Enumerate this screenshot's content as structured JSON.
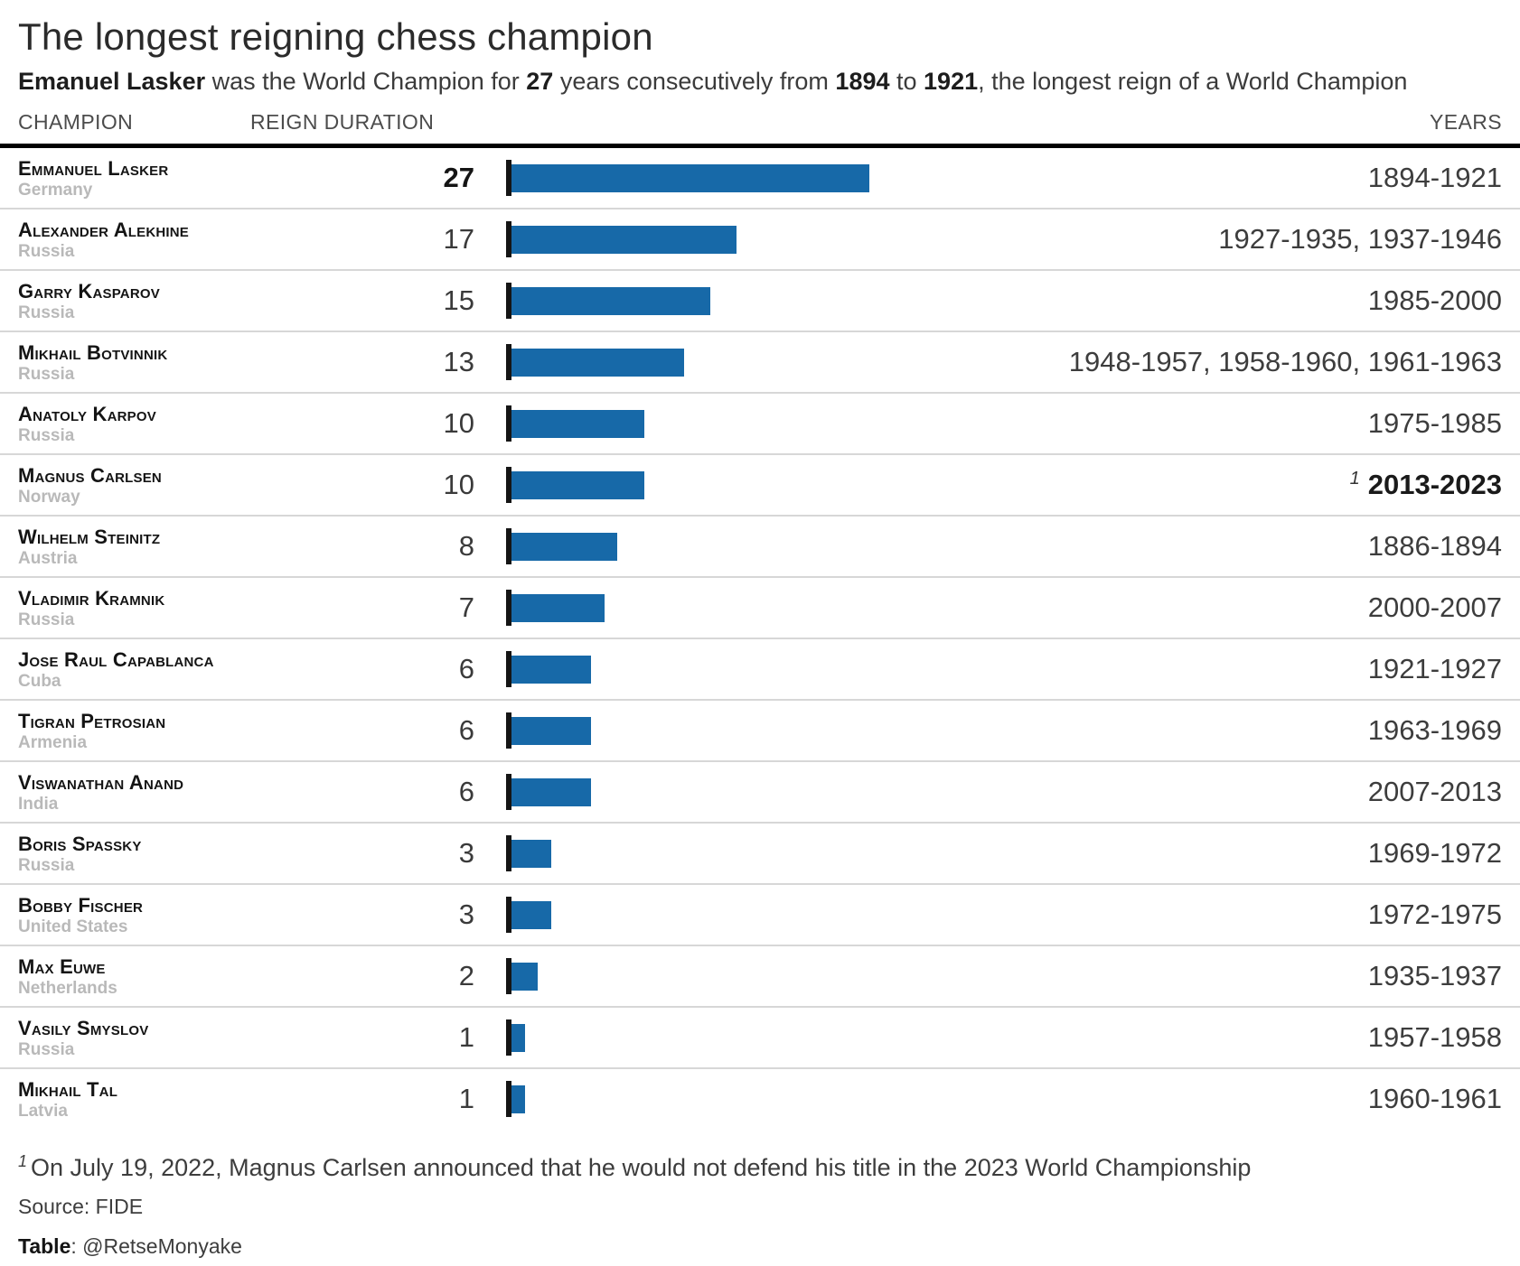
{
  "page": {
    "title": "The longest reigning chess champion",
    "subtitle_parts": [
      {
        "text": "Emanuel Lasker",
        "bold": true
      },
      {
        "text": " was the World Champion for ",
        "bold": false
      },
      {
        "text": "27",
        "bold": true
      },
      {
        "text": " years consecutively from ",
        "bold": false
      },
      {
        "text": "1894",
        "bold": true
      },
      {
        "text": " to ",
        "bold": false
      },
      {
        "text": "1921",
        "bold": true
      },
      {
        "text": ", the longest reign of a World Champion",
        "bold": false
      }
    ],
    "columns": {
      "champion": "CHAMPION",
      "reign": "REIGN DURATION",
      "years": "YEARS"
    },
    "footnote": {
      "marker": "1",
      "text": "On July 19, 2022, Magnus Carlsen announced that he would not defend his title in the 2023 World Championship"
    },
    "source": "Source: FIDE",
    "credit_label": "Table",
    "credit_rest": ": @RetseMonyake"
  },
  "colors": {
    "bar": "#1769a8",
    "axis_tick": "#151515",
    "divider": "#d7d7d7",
    "header_rule": "#000000",
    "country_text": "#b9b9b9"
  },
  "chart_data": {
    "type": "bar",
    "title": "The longest reigning chess champion",
    "subtitle": "Emanuel Lasker was the World Champion for 27 years consecutively from 1894 to 1921, the longest reign of a World Champion",
    "xlabel": "REIGN DURATION",
    "ylabel": "CHAMPION",
    "unit": "years",
    "xlim": [
      0,
      27
    ],
    "grid": false,
    "legend_position": "none",
    "bar_color": "#1769a8",
    "categories": [
      "Emmanuel Lasker",
      "Alexander Alekhine",
      "Garry Kasparov",
      "Mikhail Botvinnik",
      "Anatoly Karpov",
      "Magnus Carlsen",
      "Wilhelm Steinitz",
      "Vladimir Kramnik",
      "Jose Raul Capablanca",
      "Tigran Petrosian",
      "Viswanathan Anand",
      "Boris Spassky",
      "Bobby Fischer",
      "Max Euwe",
      "Vasily Smyslov",
      "Mikhail Tal"
    ],
    "countries": [
      "Germany",
      "Russia",
      "Russia",
      "Russia",
      "Russia",
      "Norway",
      "Austria",
      "Russia",
      "Cuba",
      "Armenia",
      "India",
      "Russia",
      "United States",
      "Netherlands",
      "Russia",
      "Latvia"
    ],
    "values": [
      27,
      17,
      15,
      13,
      10,
      10,
      8,
      7,
      6,
      6,
      6,
      3,
      3,
      2,
      1,
      1
    ],
    "years": [
      "1894-1921",
      "1927-1935, 1937-1946",
      "1985-2000",
      "1948-1957, 1958-1960, 1961-1963",
      "1975-1985",
      "2013-2023",
      "1886-1894",
      "2000-2007",
      "1921-1927",
      "1963-1969",
      "2007-2013",
      "1969-1972",
      "1972-1975",
      "1935-1937",
      "1957-1958",
      "1960-1961"
    ],
    "value_bold_index": 0,
    "years_bold_index": 5,
    "footnote_marker_index": 5,
    "footnote_marker": "1"
  }
}
